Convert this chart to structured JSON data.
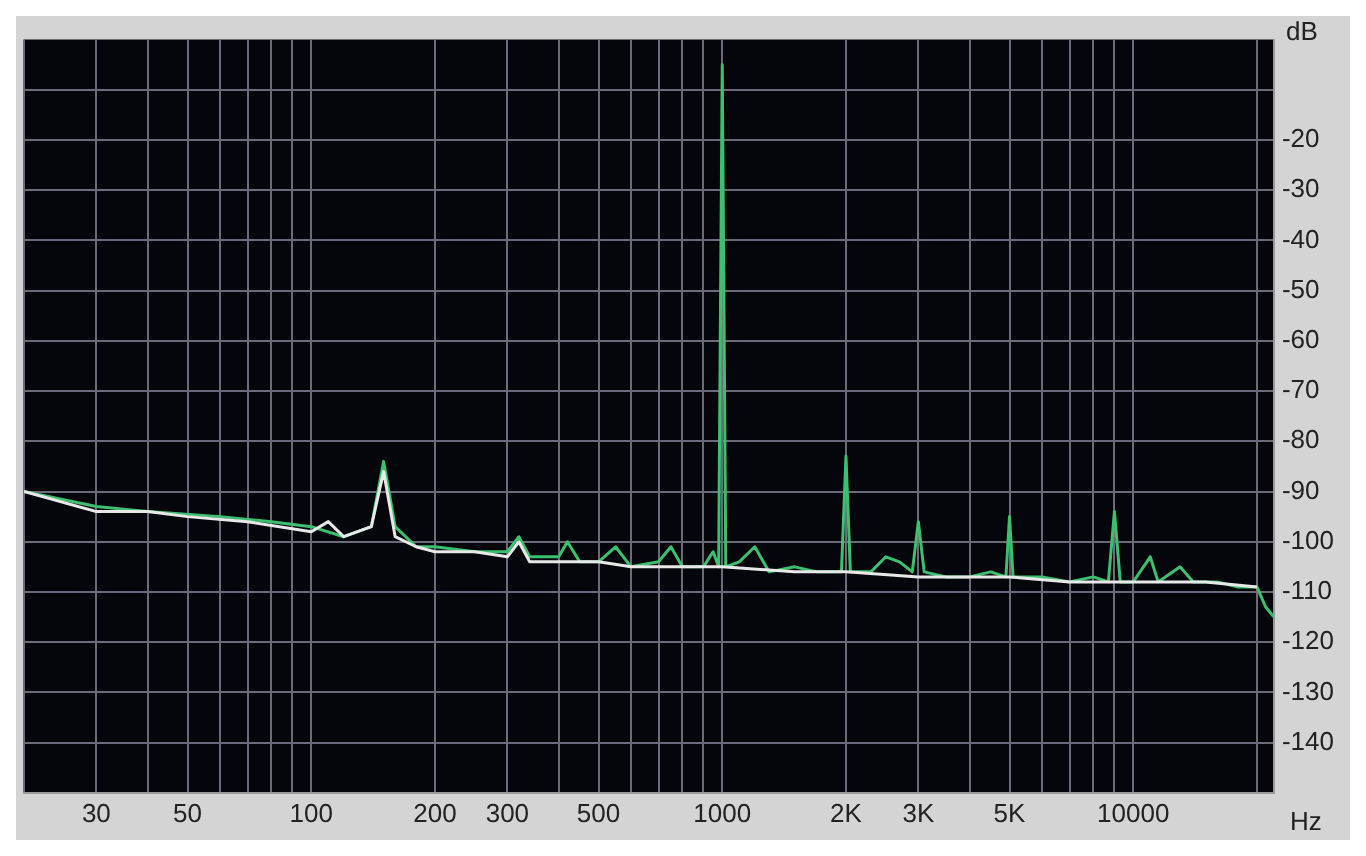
{
  "chart_data": {
    "type": "line",
    "xlabel": "Hz",
    "ylabel": "dB",
    "log": "x",
    "xlim": [
      20,
      22000
    ],
    "ylim": [
      -150,
      0
    ],
    "xticks": [
      {
        "value": 20,
        "label": null
      },
      30,
      {
        "value": 40,
        "label": null
      },
      50,
      {
        "value": 60,
        "label": null
      },
      {
        "value": 70,
        "label": null
      },
      {
        "value": 80,
        "label": null
      },
      {
        "value": 90,
        "label": null
      },
      100,
      200,
      300,
      {
        "value": 400,
        "label": null
      },
      500,
      {
        "value": 600,
        "label": null
      },
      {
        "value": 700,
        "label": null
      },
      {
        "value": 800,
        "label": null
      },
      {
        "value": 900,
        "label": null
      },
      1000,
      {
        "value": 2000,
        "label": "2K"
      },
      {
        "value": 3000,
        "label": "3K"
      },
      {
        "value": 4000,
        "label": null
      },
      {
        "value": 5000,
        "label": "5K"
      },
      {
        "value": 6000,
        "label": null
      },
      {
        "value": 7000,
        "label": null
      },
      {
        "value": 8000,
        "label": null
      },
      {
        "value": 9000,
        "label": null
      },
      10000,
      {
        "value": 20000,
        "label": null
      }
    ],
    "yticks": [
      {
        "value": -10,
        "label": null
      },
      -20,
      -30,
      -40,
      -50,
      -60,
      -70,
      -80,
      -90,
      -100,
      -110,
      -120,
      -130,
      -140
    ],
    "grid": true,
    "legend": false,
    "marker": "none",
    "line_style": "solid",
    "series": [
      {
        "color": "#e8e8e8",
        "x": [
          20,
          30,
          40,
          50,
          70,
          100,
          110,
          120,
          140,
          150,
          160,
          180,
          200,
          250,
          300,
          320,
          340,
          400,
          500,
          600,
          800,
          1000,
          1500,
          2000,
          3000,
          5000,
          7000,
          10000,
          15000,
          20000
        ],
        "values": [
          -90,
          -94,
          -94,
          -95,
          -96,
          -98,
          -96,
          -99,
          -97,
          -86,
          -99,
          -101,
          -102,
          -102,
          -103,
          -100,
          -104,
          -104,
          -104,
          -105,
          -105,
          -105,
          -106,
          -106,
          -107,
          -107,
          -108,
          -108,
          -108,
          -109
        ]
      },
      {
        "color": "#3cc070",
        "x": [
          20,
          30,
          40,
          60,
          80,
          100,
          120,
          140,
          150,
          160,
          180,
          200,
          250,
          300,
          320,
          340,
          400,
          420,
          450,
          500,
          550,
          600,
          700,
          750,
          800,
          900,
          950,
          980,
          1000,
          1020,
          1100,
          1200,
          1300,
          1500,
          1700,
          1950,
          2000,
          2050,
          2300,
          2500,
          2700,
          2900,
          3000,
          3100,
          3500,
          4000,
          4500,
          4900,
          5000,
          5100,
          6000,
          7000,
          8000,
          8700,
          9000,
          9300,
          10000,
          11000,
          11500,
          13000,
          14000,
          16000,
          18000,
          20000,
          21000,
          22000
        ],
        "values": [
          -90,
          -93,
          -94,
          -95,
          -96,
          -97,
          -99,
          -97,
          -84,
          -97,
          -101,
          -101,
          -102,
          -102,
          -99,
          -103,
          -103,
          -100,
          -104,
          -104,
          -101,
          -105,
          -104,
          -101,
          -105,
          -105,
          -102,
          -105,
          -5,
          -105,
          -104,
          -101,
          -106,
          -105,
          -106,
          -106,
          -83,
          -106,
          -106,
          -103,
          -104,
          -106,
          -96,
          -106,
          -107,
          -107,
          -106,
          -107,
          -95,
          -107,
          -107,
          -108,
          -107,
          -108,
          -94,
          -108,
          -108,
          -103,
          -108,
          -105,
          -108,
          -108,
          -109,
          -109,
          -113,
          -115
        ]
      }
    ]
  }
}
